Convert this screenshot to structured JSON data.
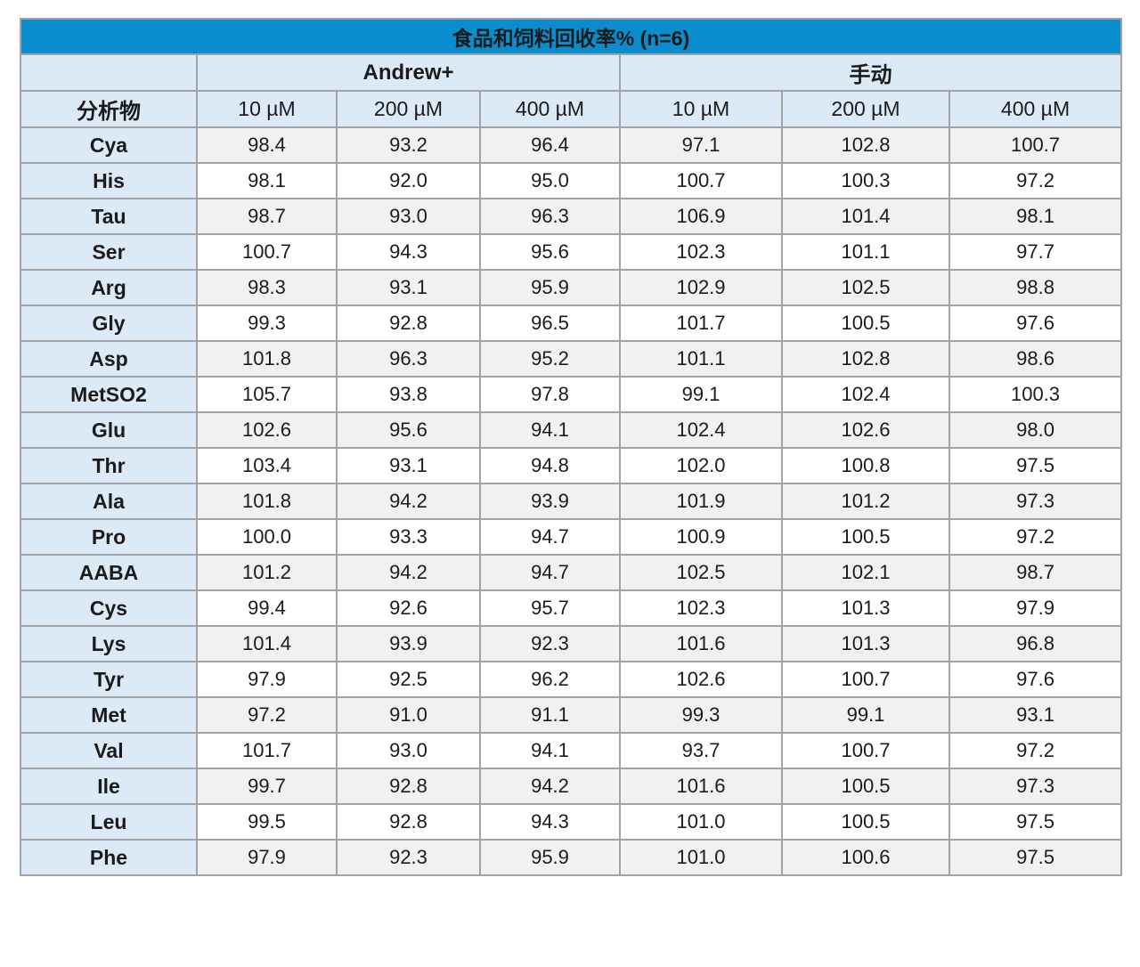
{
  "colors": {
    "title_bar": "#0a8ccd",
    "title_text": "#ffffff",
    "header_fill": "#dce9f6",
    "stripe_fill": "#f1f1f3",
    "grid_border": "#a3a3a3",
    "body_text": "#1b1b1b"
  },
  "chart_data": {
    "type": "table",
    "title": "食品和饲料回收率% (n=6)",
    "row_header": "分析物",
    "column_groups": [
      {
        "label": "Andrew+",
        "span": 3
      },
      {
        "label": "手动",
        "span": 3
      }
    ],
    "columns": [
      "10 µM",
      "200 µM",
      "400 µM",
      "10 µM",
      "200 µM",
      "400 µM"
    ],
    "rows": [
      {
        "analyte": "Cya",
        "values": [
          "98.4",
          "93.2",
          "96.4",
          "97.1",
          "102.8",
          "100.7"
        ]
      },
      {
        "analyte": "His",
        "values": [
          "98.1",
          "92.0",
          "95.0",
          "100.7",
          "100.3",
          "97.2"
        ]
      },
      {
        "analyte": "Tau",
        "values": [
          "98.7",
          "93.0",
          "96.3",
          "106.9",
          "101.4",
          "98.1"
        ]
      },
      {
        "analyte": "Ser",
        "values": [
          "100.7",
          "94.3",
          "95.6",
          "102.3",
          "101.1",
          "97.7"
        ]
      },
      {
        "analyte": "Arg",
        "values": [
          "98.3",
          "93.1",
          "95.9",
          "102.9",
          "102.5",
          "98.8"
        ]
      },
      {
        "analyte": "Gly",
        "values": [
          "99.3",
          "92.8",
          "96.5",
          "101.7",
          "100.5",
          "97.6"
        ]
      },
      {
        "analyte": "Asp",
        "values": [
          "101.8",
          "96.3",
          "95.2",
          "101.1",
          "102.8",
          "98.6"
        ]
      },
      {
        "analyte": "MetSO2",
        "values": [
          "105.7",
          "93.8",
          "97.8",
          "99.1",
          "102.4",
          "100.3"
        ]
      },
      {
        "analyte": "Glu",
        "values": [
          "102.6",
          "95.6",
          "94.1",
          "102.4",
          "102.6",
          "98.0"
        ]
      },
      {
        "analyte": "Thr",
        "values": [
          "103.4",
          "93.1",
          "94.8",
          "102.0",
          "100.8",
          "97.5"
        ]
      },
      {
        "analyte": "Ala",
        "values": [
          "101.8",
          "94.2",
          "93.9",
          "101.9",
          "101.2",
          "97.3"
        ]
      },
      {
        "analyte": "Pro",
        "values": [
          "100.0",
          "93.3",
          "94.7",
          "100.9",
          "100.5",
          "97.2"
        ]
      },
      {
        "analyte": "AABA",
        "values": [
          "101.2",
          "94.2",
          "94.7",
          "102.5",
          "102.1",
          "98.7"
        ]
      },
      {
        "analyte": "Cys",
        "values": [
          "99.4",
          "92.6",
          "95.7",
          "102.3",
          "101.3",
          "97.9"
        ]
      },
      {
        "analyte": "Lys",
        "values": [
          "101.4",
          "93.9",
          "92.3",
          "101.6",
          "101.3",
          "96.8"
        ]
      },
      {
        "analyte": "Tyr",
        "values": [
          "97.9",
          "92.5",
          "96.2",
          "102.6",
          "100.7",
          "97.6"
        ]
      },
      {
        "analyte": "Met",
        "values": [
          "97.2",
          "91.0",
          "91.1",
          "99.3",
          "99.1",
          "93.1"
        ]
      },
      {
        "analyte": "Val",
        "values": [
          "101.7",
          "93.0",
          "94.1",
          "93.7",
          "100.7",
          "97.2"
        ]
      },
      {
        "analyte": "Ile",
        "values": [
          "99.7",
          "92.8",
          "94.2",
          "101.6",
          "100.5",
          "97.3"
        ]
      },
      {
        "analyte": "Leu",
        "values": [
          "99.5",
          "92.8",
          "94.3",
          "101.0",
          "100.5",
          "97.5"
        ]
      },
      {
        "analyte": "Phe",
        "values": [
          "97.9",
          "92.3",
          "95.9",
          "101.0",
          "100.6",
          "97.5"
        ]
      }
    ]
  }
}
